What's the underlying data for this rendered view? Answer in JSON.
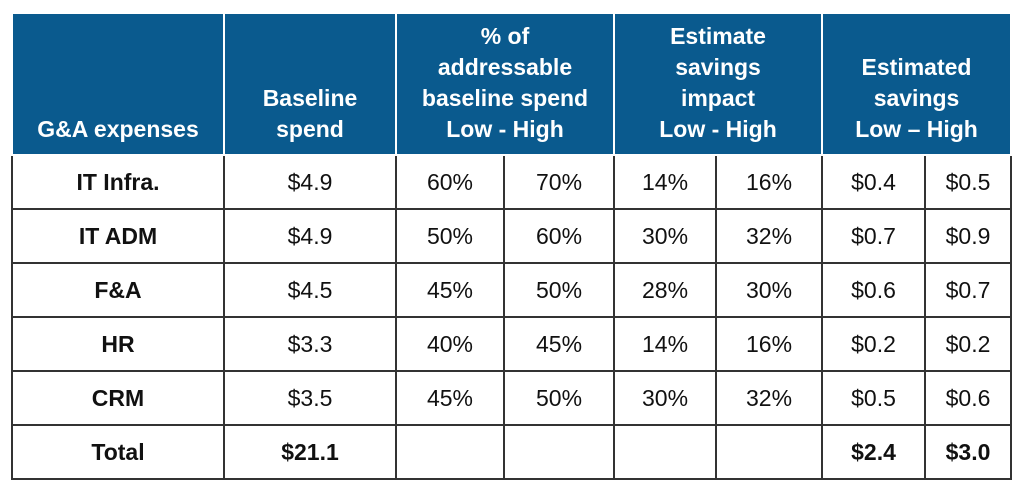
{
  "headers": {
    "col0": [
      "G&A expenses"
    ],
    "col1": [
      "Baseline",
      "spend"
    ],
    "col2": [
      "% of",
      "addressable",
      "baseline spend",
      "Low - High"
    ],
    "col3": [
      "Estimate",
      "savings",
      "impact",
      "Low - High"
    ],
    "col4": [
      "Estimated",
      "savings",
      "Low – High"
    ]
  },
  "rows": [
    {
      "label": "IT Infra.",
      "baseline": "$4.9",
      "addr_low": "60%",
      "addr_high": "70%",
      "impact_low": "14%",
      "impact_high": "16%",
      "sav_low": "$0.4",
      "sav_high": "$0.5"
    },
    {
      "label": "IT ADM",
      "baseline": "$4.9",
      "addr_low": "50%",
      "addr_high": "60%",
      "impact_low": "30%",
      "impact_high": "32%",
      "sav_low": "$0.7",
      "sav_high": "$0.9"
    },
    {
      "label": "F&A",
      "baseline": "$4.5",
      "addr_low": "45%",
      "addr_high": "50%",
      "impact_low": "28%",
      "impact_high": "30%",
      "sav_low": "$0.6",
      "sav_high": "$0.7"
    },
    {
      "label": "HR",
      "baseline": "$3.3",
      "addr_low": "40%",
      "addr_high": "45%",
      "impact_low": "14%",
      "impact_high": "16%",
      "sav_low": "$0.2",
      "sav_high": "$0.2"
    },
    {
      "label": "CRM",
      "baseline": "$3.5",
      "addr_low": "45%",
      "addr_high": "50%",
      "impact_low": "30%",
      "impact_high": "32%",
      "sav_low": "$0.5",
      "sav_high": "$0.6"
    }
  ],
  "total": {
    "label": "Total",
    "baseline": "$21.1",
    "addr_low": "",
    "addr_high": "",
    "impact_low": "",
    "impact_high": "",
    "sav_low": "$2.4",
    "sav_high": "$3.0"
  },
  "colors": {
    "header_bg": "#0a5a8e",
    "header_text": "#ffffff",
    "border": "#333333"
  }
}
